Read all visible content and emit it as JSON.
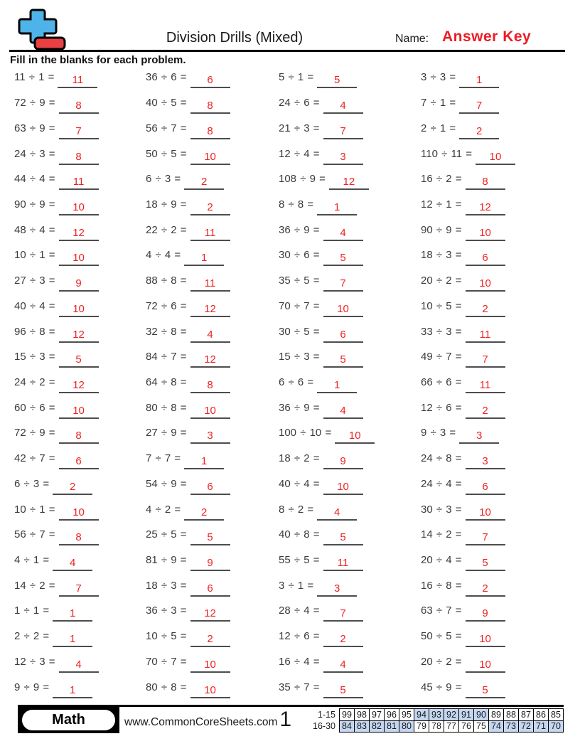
{
  "header": {
    "title": "Division Drills (Mixed)",
    "name_label": "Name:",
    "answer_key": "Answer Key",
    "logo_icons": [
      "plus-icon",
      "minus-icon"
    ],
    "logo_colors": {
      "plus_blue": "#4eb3e8",
      "minus_red": "#e84043",
      "outline": "#000000"
    }
  },
  "instructions": "Fill in the blanks for each problem.",
  "colors": {
    "answer_red": "#ee2222",
    "answer_key_red": "#ed1c24",
    "problem_text": "#3b3b3b",
    "blank_line": "#4d4d4d",
    "score_shade_blue": "#c5d7f0"
  },
  "problems": {
    "columns": [
      [
        {
          "expr": "11 ÷ 1 =",
          "ans": "11"
        },
        {
          "expr": "72 ÷ 9 =",
          "ans": "8"
        },
        {
          "expr": "63 ÷ 9 =",
          "ans": "7"
        },
        {
          "expr": "24 ÷ 3 =",
          "ans": "8"
        },
        {
          "expr": "44 ÷ 4 =",
          "ans": "11"
        },
        {
          "expr": "90 ÷ 9 =",
          "ans": "10"
        },
        {
          "expr": "48 ÷ 4 =",
          "ans": "12"
        },
        {
          "expr": "10 ÷ 1 =",
          "ans": "10"
        },
        {
          "expr": "27 ÷ 3 =",
          "ans": "9"
        },
        {
          "expr": "40 ÷ 4 =",
          "ans": "10"
        },
        {
          "expr": "96 ÷ 8 =",
          "ans": "12"
        },
        {
          "expr": "15 ÷ 3 =",
          "ans": "5"
        },
        {
          "expr": "24 ÷ 2 =",
          "ans": "12"
        },
        {
          "expr": "60 ÷ 6 =",
          "ans": "10"
        },
        {
          "expr": "72 ÷ 9 =",
          "ans": "8"
        },
        {
          "expr": "42 ÷ 7 =",
          "ans": "6"
        },
        {
          "expr": "6 ÷ 3 =",
          "ans": "2"
        },
        {
          "expr": "10 ÷ 1 =",
          "ans": "10"
        },
        {
          "expr": "56 ÷ 7 =",
          "ans": "8"
        },
        {
          "expr": "4 ÷ 1 =",
          "ans": "4"
        },
        {
          "expr": "14 ÷ 2 =",
          "ans": "7"
        },
        {
          "expr": "1 ÷ 1 =",
          "ans": "1"
        },
        {
          "expr": "2 ÷ 2 =",
          "ans": "1"
        },
        {
          "expr": "12 ÷ 3 =",
          "ans": "4"
        },
        {
          "expr": "9 ÷ 9 =",
          "ans": "1"
        }
      ],
      [
        {
          "expr": "36 ÷ 6 =",
          "ans": "6"
        },
        {
          "expr": "40 ÷ 5 =",
          "ans": "8"
        },
        {
          "expr": "56 ÷ 7 =",
          "ans": "8"
        },
        {
          "expr": "50 ÷ 5 =",
          "ans": "10"
        },
        {
          "expr": "6 ÷ 3 =",
          "ans": "2"
        },
        {
          "expr": "18 ÷ 9 =",
          "ans": "2"
        },
        {
          "expr": "22 ÷ 2 =",
          "ans": "11"
        },
        {
          "expr": "4 ÷ 4 =",
          "ans": "1"
        },
        {
          "expr": "88 ÷ 8 =",
          "ans": "11"
        },
        {
          "expr": "72 ÷ 6 =",
          "ans": "12"
        },
        {
          "expr": "32 ÷ 8 =",
          "ans": "4"
        },
        {
          "expr": "84 ÷ 7 =",
          "ans": "12"
        },
        {
          "expr": "64 ÷ 8 =",
          "ans": "8"
        },
        {
          "expr": "80 ÷ 8 =",
          "ans": "10"
        },
        {
          "expr": "27 ÷ 9 =",
          "ans": "3"
        },
        {
          "expr": "7 ÷ 7 =",
          "ans": "1"
        },
        {
          "expr": "54 ÷ 9 =",
          "ans": "6"
        },
        {
          "expr": "4 ÷ 2 =",
          "ans": "2"
        },
        {
          "expr": "25 ÷ 5 =",
          "ans": "5"
        },
        {
          "expr": "81 ÷ 9 =",
          "ans": "9"
        },
        {
          "expr": "18 ÷ 3 =",
          "ans": "6"
        },
        {
          "expr": "36 ÷ 3 =",
          "ans": "12"
        },
        {
          "expr": "10 ÷ 5 =",
          "ans": "2"
        },
        {
          "expr": "70 ÷ 7 =",
          "ans": "10"
        },
        {
          "expr": "80 ÷ 8 =",
          "ans": "10"
        }
      ],
      [
        {
          "expr": "5 ÷ 1 =",
          "ans": "5"
        },
        {
          "expr": "24 ÷ 6 =",
          "ans": "4"
        },
        {
          "expr": "21 ÷ 3 =",
          "ans": "7"
        },
        {
          "expr": "12 ÷ 4 =",
          "ans": "3"
        },
        {
          "expr": "108 ÷ 9 =",
          "ans": "12"
        },
        {
          "expr": "8 ÷ 8 =",
          "ans": "1"
        },
        {
          "expr": "36 ÷ 9 =",
          "ans": "4"
        },
        {
          "expr": "30 ÷ 6 =",
          "ans": "5"
        },
        {
          "expr": "35 ÷ 5 =",
          "ans": "7"
        },
        {
          "expr": "70 ÷ 7 =",
          "ans": "10"
        },
        {
          "expr": "30 ÷ 5 =",
          "ans": "6"
        },
        {
          "expr": "15 ÷ 3 =",
          "ans": "5"
        },
        {
          "expr": "6 ÷ 6 =",
          "ans": "1"
        },
        {
          "expr": "36 ÷ 9 =",
          "ans": "4"
        },
        {
          "expr": "100 ÷ 10 =",
          "ans": "10"
        },
        {
          "expr": "18 ÷ 2 =",
          "ans": "9"
        },
        {
          "expr": "40 ÷ 4 =",
          "ans": "10"
        },
        {
          "expr": "8 ÷ 2 =",
          "ans": "4"
        },
        {
          "expr": "40 ÷ 8 =",
          "ans": "5"
        },
        {
          "expr": "55 ÷ 5 =",
          "ans": "11"
        },
        {
          "expr": "3 ÷ 1 =",
          "ans": "3"
        },
        {
          "expr": "28 ÷ 4 =",
          "ans": "7"
        },
        {
          "expr": "12 ÷ 6 =",
          "ans": "2"
        },
        {
          "expr": "16 ÷ 4 =",
          "ans": "4"
        },
        {
          "expr": "35 ÷ 7 =",
          "ans": "5"
        }
      ],
      [
        {
          "expr": "3 ÷ 3 =",
          "ans": "1"
        },
        {
          "expr": "7 ÷ 1 =",
          "ans": "7"
        },
        {
          "expr": "2 ÷ 1 =",
          "ans": "2"
        },
        {
          "expr": "110 ÷ 11 =",
          "ans": "10"
        },
        {
          "expr": "16 ÷ 2 =",
          "ans": "8"
        },
        {
          "expr": "12 ÷ 1 =",
          "ans": "12"
        },
        {
          "expr": "90 ÷ 9 =",
          "ans": "10"
        },
        {
          "expr": "18 ÷ 3 =",
          "ans": "6"
        },
        {
          "expr": "20 ÷ 2 =",
          "ans": "10"
        },
        {
          "expr": "10 ÷ 5 =",
          "ans": "2"
        },
        {
          "expr": "33 ÷ 3 =",
          "ans": "11"
        },
        {
          "expr": "49 ÷ 7 =",
          "ans": "7"
        },
        {
          "expr": "66 ÷ 6 =",
          "ans": "11"
        },
        {
          "expr": "12 ÷ 6 =",
          "ans": "2"
        },
        {
          "expr": "9 ÷ 3 =",
          "ans": "3"
        },
        {
          "expr": "24 ÷ 8 =",
          "ans": "3"
        },
        {
          "expr": "24 ÷ 4 =",
          "ans": "6"
        },
        {
          "expr": "30 ÷ 3 =",
          "ans": "10"
        },
        {
          "expr": "14 ÷ 2 =",
          "ans": "7"
        },
        {
          "expr": "20 ÷ 4 =",
          "ans": "5"
        },
        {
          "expr": "16 ÷ 8 =",
          "ans": "2"
        },
        {
          "expr": "63 ÷ 7 =",
          "ans": "9"
        },
        {
          "expr": "50 ÷ 5 =",
          "ans": "10"
        },
        {
          "expr": "20 ÷ 2 =",
          "ans": "10"
        },
        {
          "expr": "45 ÷ 9 =",
          "ans": "5"
        }
      ]
    ]
  },
  "footer": {
    "badge_label": "Math",
    "website": "www.CommonCoreSheets.com",
    "page_number": "1",
    "score_table": {
      "rows": [
        {
          "label": "1-15",
          "values": [
            "99",
            "98",
            "97",
            "96",
            "95",
            "94",
            "93",
            "92",
            "91",
            "90",
            "89",
            "88",
            "87",
            "86",
            "85"
          ],
          "shaded": [
            false,
            false,
            false,
            false,
            false,
            true,
            true,
            true,
            true,
            true,
            false,
            false,
            false,
            false,
            false
          ]
        },
        {
          "label": "16-30",
          "values": [
            "84",
            "83",
            "82",
            "81",
            "80",
            "79",
            "78",
            "77",
            "76",
            "75",
            "74",
            "73",
            "72",
            "71",
            "70"
          ],
          "shaded": [
            true,
            true,
            true,
            true,
            true,
            false,
            false,
            false,
            false,
            false,
            true,
            true,
            true,
            true,
            true
          ]
        }
      ]
    }
  }
}
